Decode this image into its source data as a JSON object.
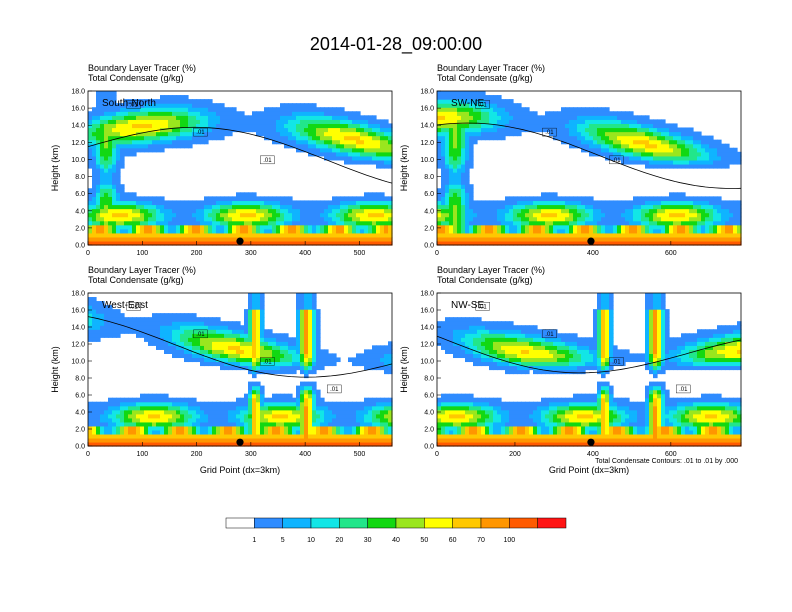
{
  "chart_data": {
    "type": "heatmap",
    "title": "2014-01-28_09:00:00",
    "footnote": "Total Condensate Contours: .01 to .01 by .000",
    "colorbar": {
      "labels": [
        "1",
        "5",
        "10",
        "20",
        "30",
        "40",
        "50",
        "60",
        "70",
        "100"
      ],
      "colors": [
        "#ffffff",
        "#2f8cff",
        "#0fb4ff",
        "#12e6e6",
        "#22e68a",
        "#12d812",
        "#9ae61e",
        "#ffff00",
        "#ffc800",
        "#ff9600",
        "#ff5a00",
        "#ff1414"
      ]
    },
    "panels": [
      {
        "name": "South-North",
        "label": "South-North",
        "variable_1": "Boundary Layer Tracer   (%)",
        "variable_2": "Total Condensate   (g/kg)",
        "ylabel": "Height (km)",
        "xlabel": "",
        "y_ticks": [
          "0.0",
          "2.0",
          "4.0",
          "6.0",
          "8.0",
          "10.0",
          "12.0",
          "14.0",
          "16.0",
          "18.0"
        ],
        "ylim": [
          0,
          18
        ],
        "x_ticks": [
          "0",
          "100",
          "200",
          "300",
          "400",
          "500"
        ],
        "x_tick_values": [
          0,
          100,
          200,
          300,
          400,
          500
        ],
        "xlim": [
          0,
          560
        ],
        "marker_x": 280,
        "contour_labels": [
          ".01",
          ".01",
          ".01"
        ]
      },
      {
        "name": "SW-NE",
        "label": "SW-NE",
        "variable_1": "Boundary Layer Tracer   (%)",
        "variable_2": "Total Condensate   (g/kg)",
        "ylabel": "Height (km)",
        "xlabel": "",
        "y_ticks": [
          "0.0",
          "2.0",
          "4.0",
          "6.0",
          "8.0",
          "10.0",
          "12.0",
          "14.0",
          "16.0",
          "18.0"
        ],
        "ylim": [
          0,
          18
        ],
        "x_ticks": [
          "0",
          "400",
          "600"
        ],
        "x_tick_values": [
          0,
          400,
          600
        ],
        "xlim": [
          0,
          780
        ],
        "marker_x": 395,
        "contour_labels": [
          ".01",
          ".01",
          ".01"
        ]
      },
      {
        "name": "West-East",
        "label": "West-East",
        "variable_1": "Boundary Layer Tracer   (%)",
        "variable_2": "Total Condensate   (g/kg)",
        "ylabel": "Height (km)",
        "xlabel": "Grid Point (dx=3km)",
        "y_ticks": [
          "0.0",
          "2.0",
          "4.0",
          "6.0",
          "8.0",
          "10.0",
          "12.0",
          "14.0",
          "16.0",
          "18.0"
        ],
        "ylim": [
          0,
          18
        ],
        "x_ticks": [
          "0",
          "100",
          "200",
          "300",
          "400",
          "500"
        ],
        "x_tick_values": [
          0,
          100,
          200,
          300,
          400,
          500
        ],
        "xlim": [
          0,
          560
        ],
        "marker_x": 280,
        "contour_labels": [
          ".01",
          ".01",
          ".01",
          ".01"
        ]
      },
      {
        "name": "NW-SE",
        "label": "NW-SE",
        "variable_1": "Boundary Layer Tracer   (%)",
        "variable_2": "Total Condensate   (g/kg)",
        "ylabel": "Height (km)",
        "xlabel": "Grid Point (dx=3km)",
        "y_ticks": [
          "0.0",
          "2.0",
          "4.0",
          "6.0",
          "8.0",
          "10.0",
          "12.0",
          "14.0",
          "16.0",
          "18.0"
        ],
        "ylim": [
          0,
          18
        ],
        "x_ticks": [
          "0",
          "200",
          "400",
          "600"
        ],
        "x_tick_values": [
          0,
          200,
          400,
          600
        ],
        "xlim": [
          0,
          780
        ],
        "marker_x": 395,
        "contour_labels": [
          ".01",
          ".01",
          ".01",
          ".01"
        ]
      }
    ]
  }
}
